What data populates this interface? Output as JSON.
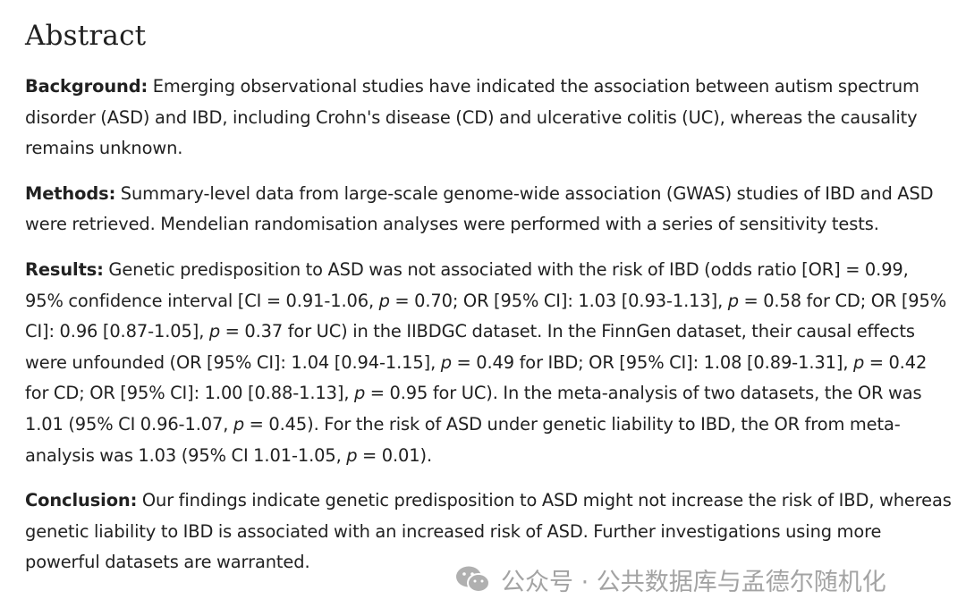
{
  "heading": "Abstract",
  "sections": [
    {
      "label": "Background:",
      "segments": [
        {
          "t": " Emerging observational studies have indicated the association between autism spectrum disorder (ASD) and IBD, including Crohn's disease (CD) and ulcerative colitis (UC), whereas the causality remains unknown."
        }
      ]
    },
    {
      "label": "Methods:",
      "segments": [
        {
          "t": " Summary-level data from large-scale genome-wide association (GWAS) studies of IBD and ASD were retrieved. Mendelian randomisation analyses were performed with a series of sensitivity tests."
        }
      ]
    },
    {
      "label": "Results:",
      "segments": [
        {
          "t": " Genetic predisposition to ASD was not associated with the risk of IBD (odds ratio [OR] = 0.99, 95% confidence interval [CI = 0.91-1.06, "
        },
        {
          "t": "p",
          "i": true
        },
        {
          "t": " = 0.70; OR [95% CI]: 1.03 [0.93-1.13], "
        },
        {
          "t": "p",
          "i": true
        },
        {
          "t": " = 0.58 for CD; OR [95% CI]: 0.96 [0.87-1.05], "
        },
        {
          "t": "p",
          "i": true
        },
        {
          "t": " = 0.37 for UC) in the IIBDGC dataset. In the FinnGen dataset, their causal effects were unfounded (OR [95% CI]: 1.04 [0.94-1.15], "
        },
        {
          "t": "p",
          "i": true
        },
        {
          "t": " = 0.49 for IBD; OR [95% CI]: 1.08 [0.89-1.31], "
        },
        {
          "t": "p",
          "i": true
        },
        {
          "t": " = 0.42 for CD; OR [95% CI]: 1.00 [0.88-1.13], "
        },
        {
          "t": "p",
          "i": true
        },
        {
          "t": " = 0.95 for UC). In the meta-analysis of two datasets, the OR was 1.01 (95% CI 0.96-1.07, "
        },
        {
          "t": "p",
          "i": true
        },
        {
          "t": " = 0.45). For the risk of ASD under genetic liability to IBD, the OR from meta-analysis was 1.03 (95% CI 1.01-1.05, "
        },
        {
          "t": "p",
          "i": true
        },
        {
          "t": " = 0.01)."
        }
      ]
    },
    {
      "label": "Conclusion:",
      "segments": [
        {
          "t": " Our findings indicate genetic predisposition to ASD might not increase the risk of IBD, whereas genetic liability to IBD is associated with an increased risk of ASD. Further investigations using more powerful datasets are warranted."
        }
      ]
    }
  ],
  "watermark": {
    "icon": "wechat-icon",
    "text": "公众号 · 公共数据库与孟德尔随机化",
    "color": "#9a9a9a"
  }
}
